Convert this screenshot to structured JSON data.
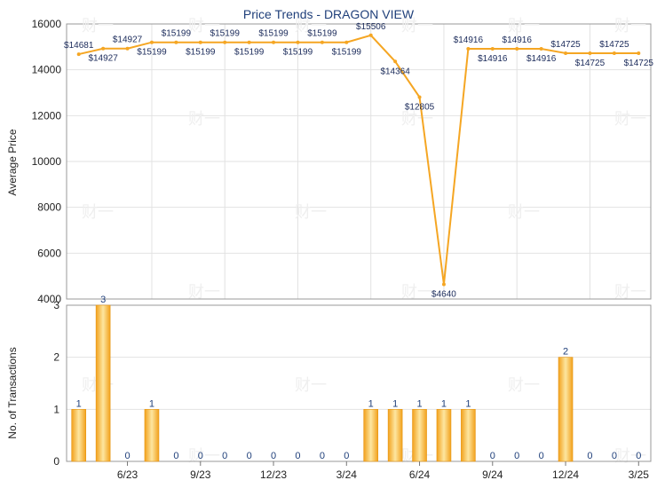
{
  "chart_data": [
    {
      "type": "line",
      "title": "Price Trends - DRAGON VIEW",
      "ylabel": "Average Price",
      "ylim": [
        4000,
        16000
      ],
      "yticks": [
        4000,
        6000,
        8000,
        10000,
        12000,
        14000,
        16000
      ],
      "series": [
        {
          "values": [
            14681,
            14927,
            14927,
            15199,
            15199,
            15199,
            15199,
            15199,
            15199,
            15199,
            15199,
            15199,
            15506,
            14364,
            12805,
            4640,
            14916,
            14916,
            14916,
            14916,
            14725,
            14725,
            14725,
            14725
          ],
          "labels": [
            "$14681",
            "$14927",
            "$14927",
            "$15199",
            "$15199",
            "$15199",
            "$15199",
            "$15199",
            "$15199",
            "$15199",
            "$15199",
            "$15199",
            "$15506",
            "$14364",
            "$12805",
            "$4640",
            "$14916",
            "$14916",
            "$14916",
            "$14916",
            "$14725",
            "$14725",
            "$14725",
            "$14725"
          ],
          "color": "#f5a623"
        }
      ],
      "grid": true
    },
    {
      "type": "bar",
      "ylabel": "No. of Transactions",
      "ylim": [
        0,
        3
      ],
      "yticks": [
        0,
        1,
        2,
        3
      ],
      "xticks": [
        "6/23",
        "9/23",
        "12/23",
        "3/24",
        "6/24",
        "9/24",
        "12/24",
        "3/25"
      ],
      "values": [
        1,
        3,
        0,
        1,
        0,
        0,
        0,
        0,
        0,
        0,
        0,
        0,
        1,
        1,
        1,
        1,
        1,
        0,
        0,
        0,
        2,
        0,
        0,
        0
      ],
      "color": "#f5a623",
      "grid": true
    }
  ],
  "watermark": "财一"
}
